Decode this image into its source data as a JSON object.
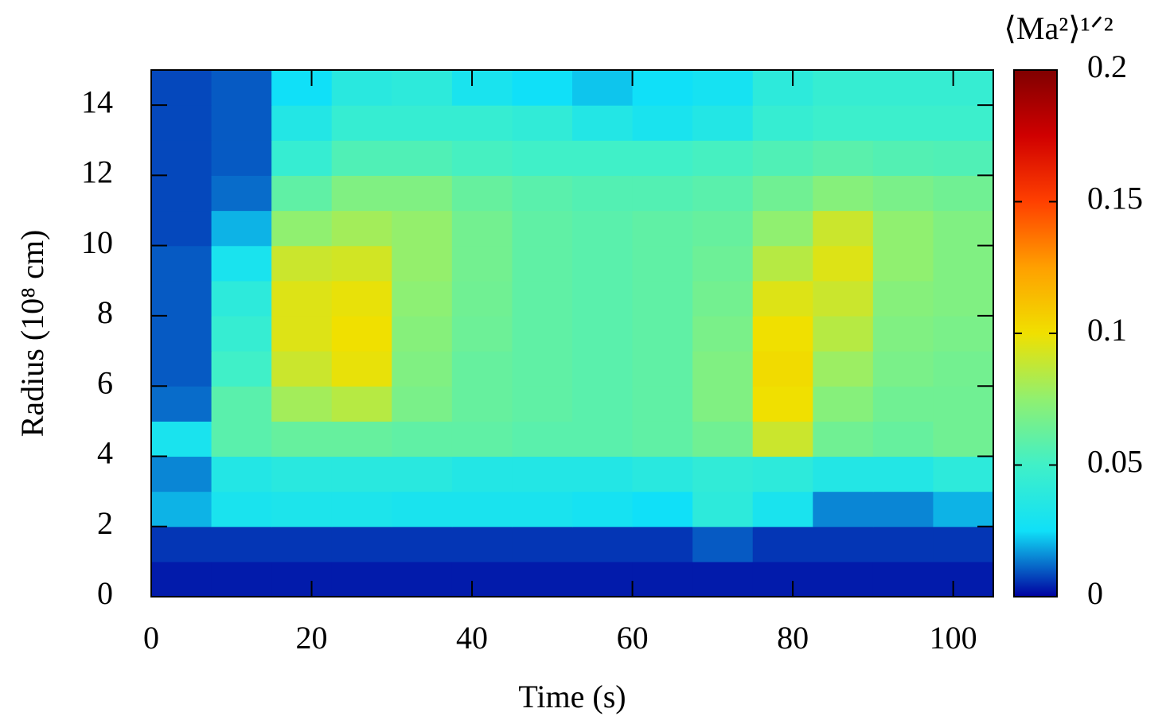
{
  "chart_data": {
    "type": "heatmap",
    "xlabel": "Time (s)",
    "ylabel": "Radius (10⁸ cm)",
    "colorbar_label": "⟨Ma²⟩¹ᐟ²",
    "x": [
      0,
      7.5,
      15,
      22.5,
      30,
      37.5,
      45,
      52.5,
      60,
      67.5,
      75,
      82.5,
      90,
      97.5,
      105
    ],
    "y": [
      0,
      1,
      2,
      3,
      4,
      5,
      6,
      7,
      8,
      9,
      10,
      11,
      12,
      13,
      14,
      15
    ],
    "z": [
      [
        0.003,
        0.003,
        0.003,
        0.003,
        0.003,
        0.003,
        0.003,
        0.003,
        0.003,
        0.003,
        0.003,
        0.003,
        0.003,
        0.003
      ],
      [
        0.006,
        0.006,
        0.006,
        0.006,
        0.006,
        0.006,
        0.006,
        0.006,
        0.006,
        0.01,
        0.006,
        0.006,
        0.006,
        0.006
      ],
      [
        0.02,
        0.03,
        0.032,
        0.032,
        0.03,
        0.03,
        0.03,
        0.028,
        0.025,
        0.04,
        0.03,
        0.015,
        0.015,
        0.02
      ],
      [
        0.015,
        0.035,
        0.038,
        0.038,
        0.038,
        0.035,
        0.035,
        0.035,
        0.038,
        0.042,
        0.04,
        0.035,
        0.035,
        0.04
      ],
      [
        0.03,
        0.058,
        0.062,
        0.062,
        0.06,
        0.06,
        0.058,
        0.058,
        0.06,
        0.065,
        0.09,
        0.065,
        0.062,
        0.065
      ],
      [
        0.012,
        0.058,
        0.08,
        0.085,
        0.068,
        0.062,
        0.06,
        0.058,
        0.06,
        0.07,
        0.1,
        0.072,
        0.065,
        0.065
      ],
      [
        0.01,
        0.05,
        0.09,
        0.098,
        0.07,
        0.062,
        0.06,
        0.058,
        0.06,
        0.07,
        0.102,
        0.078,
        0.068,
        0.066
      ],
      [
        0.01,
        0.045,
        0.095,
        0.1,
        0.072,
        0.064,
        0.06,
        0.058,
        0.06,
        0.068,
        0.1,
        0.085,
        0.07,
        0.068
      ],
      [
        0.01,
        0.04,
        0.095,
        0.098,
        0.074,
        0.065,
        0.06,
        0.058,
        0.06,
        0.066,
        0.095,
        0.09,
        0.072,
        0.07
      ],
      [
        0.01,
        0.03,
        0.09,
        0.092,
        0.076,
        0.066,
        0.06,
        0.058,
        0.06,
        0.064,
        0.085,
        0.095,
        0.075,
        0.07
      ],
      [
        0.008,
        0.02,
        0.075,
        0.08,
        0.076,
        0.066,
        0.06,
        0.058,
        0.06,
        0.062,
        0.075,
        0.09,
        0.075,
        0.07
      ],
      [
        0.008,
        0.012,
        0.06,
        0.07,
        0.07,
        0.062,
        0.058,
        0.056,
        0.056,
        0.058,
        0.065,
        0.072,
        0.068,
        0.065
      ],
      [
        0.008,
        0.01,
        0.045,
        0.055,
        0.055,
        0.052,
        0.05,
        0.05,
        0.05,
        0.052,
        0.055,
        0.058,
        0.056,
        0.055
      ],
      [
        0.008,
        0.01,
        0.035,
        0.045,
        0.045,
        0.045,
        0.042,
        0.035,
        0.03,
        0.035,
        0.045,
        0.048,
        0.048,
        0.048
      ],
      [
        0.008,
        0.01,
        0.025,
        0.038,
        0.04,
        0.03,
        0.025,
        0.022,
        0.025,
        0.028,
        0.04,
        0.045,
        0.045,
        0.045
      ]
    ],
    "xlim": [
      0,
      105
    ],
    "ylim": [
      0,
      15
    ],
    "clim": [
      0,
      0.2
    ],
    "xticks": [
      0,
      20,
      40,
      60,
      80,
      100
    ],
    "yticks": [
      0,
      2,
      4,
      6,
      8,
      10,
      12,
      14
    ],
    "cticks": [
      0,
      0.05,
      0.1,
      0.15,
      0.2
    ],
    "colormap": [
      "#0000a0",
      "#10e0f8",
      "#40f0c8",
      "#90f070",
      "#f0e000",
      "#ffa000",
      "#ff4000",
      "#d00000",
      "#800000"
    ]
  }
}
